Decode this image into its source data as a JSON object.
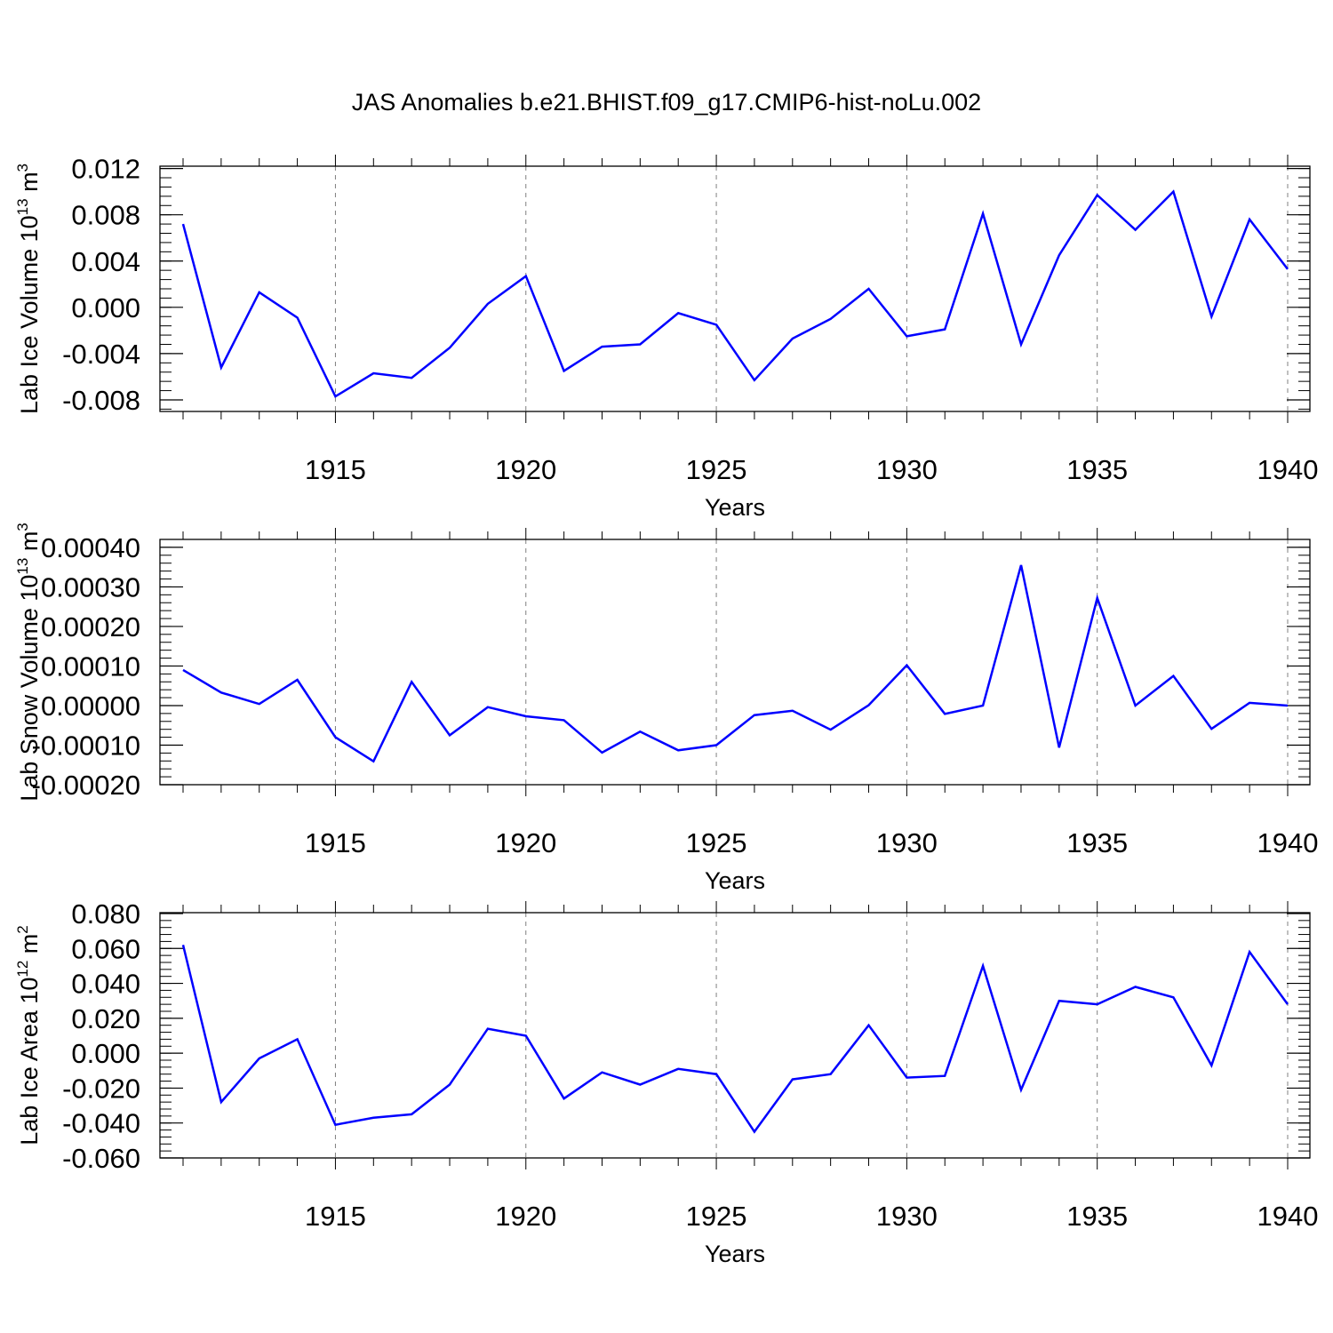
{
  "title": "JAS Anomalies b.e21.BHIST.f09_g17.CMIP6-hist-noLu.002",
  "line_color": "#0000ff",
  "chart_data": [
    {
      "type": "line",
      "ylabel": "Lab Ice Volume 10",
      "ylabel_sup": "13",
      "ylabel_unit": " m",
      "ylabel_unit_sup": "3",
      "xlabel": "Years",
      "xlim": [
        1911,
        1940
      ],
      "ylim": [
        -0.009,
        0.0122
      ],
      "yticks": [
        -0.008,
        -0.004,
        0.0,
        0.004,
        0.008,
        0.012
      ],
      "ytick_labels": [
        "-0.008",
        "-0.004",
        "0.000",
        "0.004",
        "0.008",
        "0.012"
      ],
      "xticks": [
        1915,
        1920,
        1925,
        1930,
        1935,
        1940
      ],
      "xtick_labels": [
        "1915",
        "1920",
        "1925",
        "1930",
        "1935",
        "1940"
      ],
      "x": [
        1911,
        1912,
        1913,
        1914,
        1915,
        1916,
        1917,
        1918,
        1919,
        1920,
        1921,
        1922,
        1923,
        1924,
        1925,
        1926,
        1927,
        1928,
        1929,
        1930,
        1931,
        1932,
        1933,
        1934,
        1935,
        1936,
        1937,
        1938,
        1939,
        1940
      ],
      "values": [
        0.0072,
        -0.0052,
        0.0013,
        -0.0009,
        -0.0077,
        -0.0057,
        -0.0061,
        -0.0035,
        0.0003,
        0.0027,
        -0.0055,
        -0.0034,
        -0.0032,
        -0.0005,
        -0.0015,
        -0.0063,
        -0.0027,
        -0.001,
        0.0016,
        -0.0025,
        -0.0019,
        0.0081,
        -0.0032,
        0.0045,
        0.0097,
        0.0067,
        0.01,
        -0.0008,
        0.0076,
        0.0033
      ]
    },
    {
      "type": "line",
      "ylabel": "Lab Snow Volume 10",
      "ylabel_sup": "13",
      "ylabel_unit": " m",
      "ylabel_unit_sup": "3",
      "xlabel": "Years",
      "xlim": [
        1911,
        1940
      ],
      "ylim": [
        -0.0002,
        0.00042
      ],
      "yticks": [
        -0.0002,
        -0.0001,
        0.0,
        0.0001,
        0.0002,
        0.0003,
        0.0004
      ],
      "ytick_labels": [
        "-0.00020",
        "-0.00010",
        "0.00000",
        "0.00010",
        "0.00020",
        "0.00030",
        "0.00040"
      ],
      "xticks": [
        1915,
        1920,
        1925,
        1930,
        1935,
        1940
      ],
      "xtick_labels": [
        "1915",
        "1920",
        "1925",
        "1930",
        "1935",
        "1940"
      ],
      "x": [
        1911,
        1912,
        1913,
        1914,
        1915,
        1916,
        1917,
        1918,
        1919,
        1920,
        1921,
        1922,
        1923,
        1924,
        1925,
        1926,
        1927,
        1928,
        1929,
        1930,
        1931,
        1932,
        1933,
        1934,
        1935,
        1936,
        1937,
        1938,
        1939,
        1940
      ],
      "values": [
        9e-05,
        3.3e-05,
        4e-06,
        6.5e-05,
        -8e-05,
        -0.000141,
        6e-05,
        -7.5e-05,
        -4e-06,
        -2.7e-05,
        -3.7e-05,
        -0.000119,
        -6.6e-05,
        -0.000113,
        -0.0001,
        -2.4e-05,
        -1.3e-05,
        -6.1e-05,
        1e-06,
        0.000102,
        -2.1e-05,
        0.0,
        0.000355,
        -0.000106,
        0.000272,
        0.0,
        7.5e-05,
        -5.9e-05,
        7e-06,
        0.0
      ]
    },
    {
      "type": "line",
      "ylabel": "Lab Ice Area 10",
      "ylabel_sup": "12",
      "ylabel_unit": " m",
      "ylabel_unit_sup": "2",
      "xlabel": "Years",
      "xlim": [
        1911,
        1940
      ],
      "ylim": [
        -0.06,
        0.0805
      ],
      "yticks": [
        -0.06,
        -0.04,
        -0.02,
        0.0,
        0.02,
        0.04,
        0.06,
        0.08
      ],
      "ytick_labels": [
        "-0.060",
        "-0.040",
        "-0.020",
        "0.000",
        "0.020",
        "0.040",
        "0.060",
        "0.080"
      ],
      "xticks": [
        1915,
        1920,
        1925,
        1930,
        1935,
        1940
      ],
      "xtick_labels": [
        "1915",
        "1920",
        "1925",
        "1930",
        "1935",
        "1940"
      ],
      "x": [
        1911,
        1912,
        1913,
        1914,
        1915,
        1916,
        1917,
        1918,
        1919,
        1920,
        1921,
        1922,
        1923,
        1924,
        1925,
        1926,
        1927,
        1928,
        1929,
        1930,
        1931,
        1932,
        1933,
        1934,
        1935,
        1936,
        1937,
        1938,
        1939,
        1940
      ],
      "values": [
        0.062,
        -0.028,
        -0.003,
        0.008,
        -0.041,
        -0.037,
        -0.035,
        -0.018,
        0.014,
        0.01,
        -0.026,
        -0.011,
        -0.018,
        -0.009,
        -0.012,
        -0.045,
        -0.015,
        -0.012,
        0.016,
        -0.014,
        -0.013,
        0.05,
        -0.021,
        0.03,
        0.028,
        0.038,
        0.032,
        -0.007,
        0.058,
        0.028
      ]
    }
  ]
}
